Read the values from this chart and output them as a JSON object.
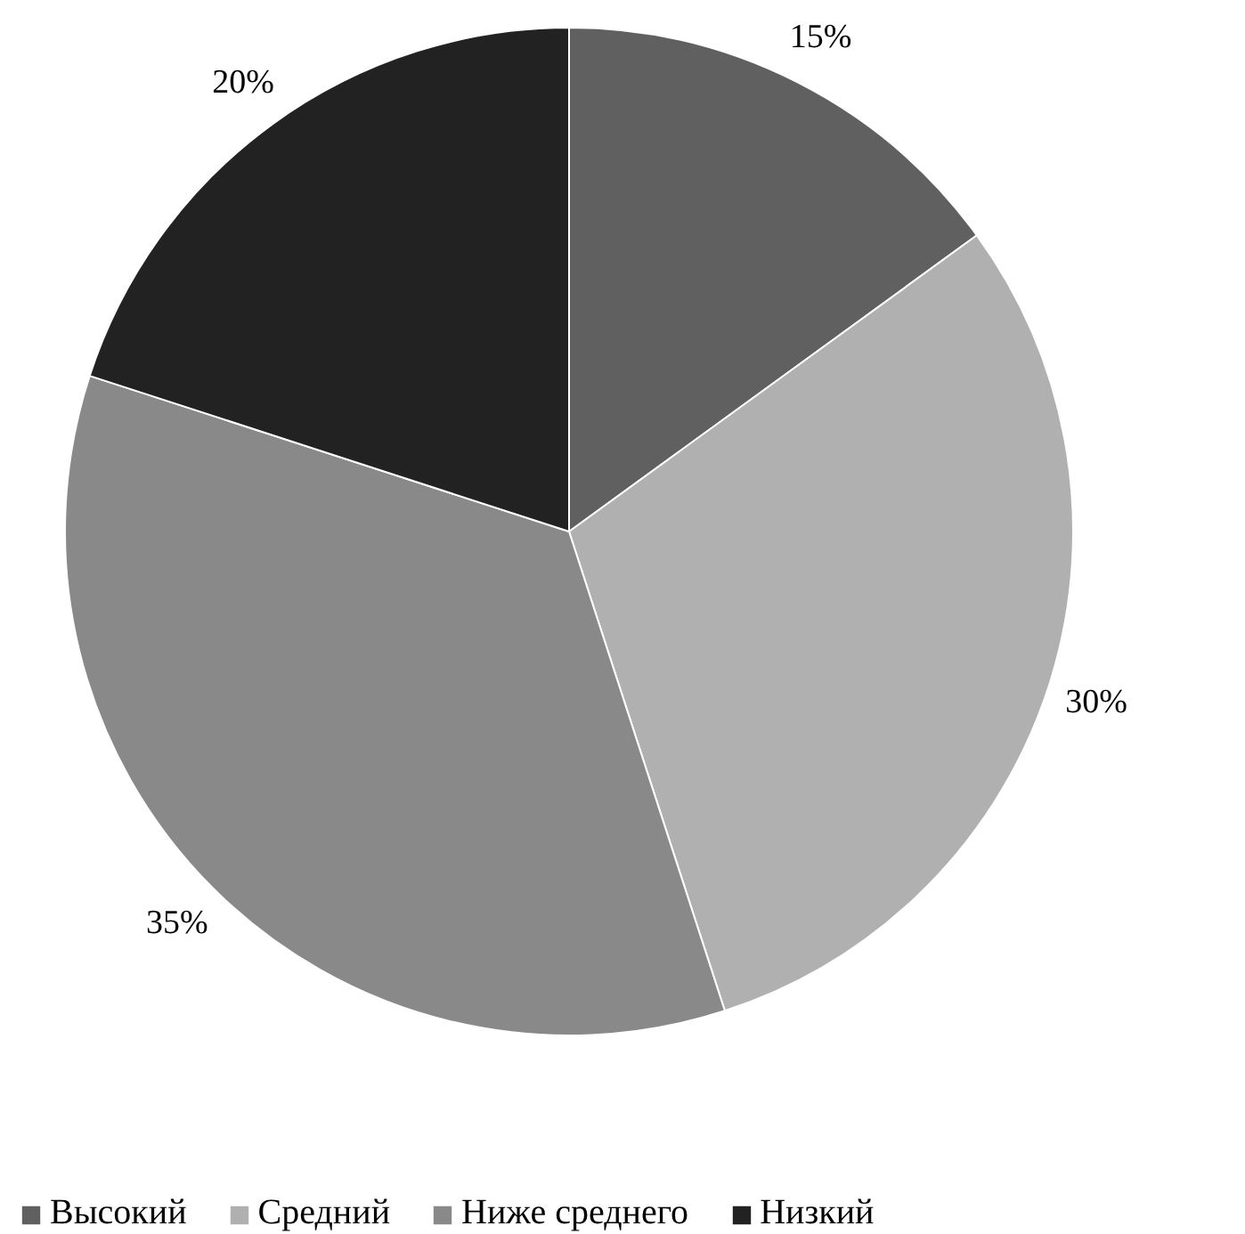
{
  "chart_data": {
    "type": "pie",
    "categories": [
      "Высокий",
      "Средний",
      "Ниже среднего",
      "Низкий"
    ],
    "values": [
      15,
      30,
      35,
      20
    ],
    "colors": [
      "#606060",
      "#b0b0b0",
      "#898989",
      "#222222"
    ],
    "value_labels": [
      "15%",
      "30%",
      "35%",
      "20%"
    ],
    "legend": "bottom"
  }
}
